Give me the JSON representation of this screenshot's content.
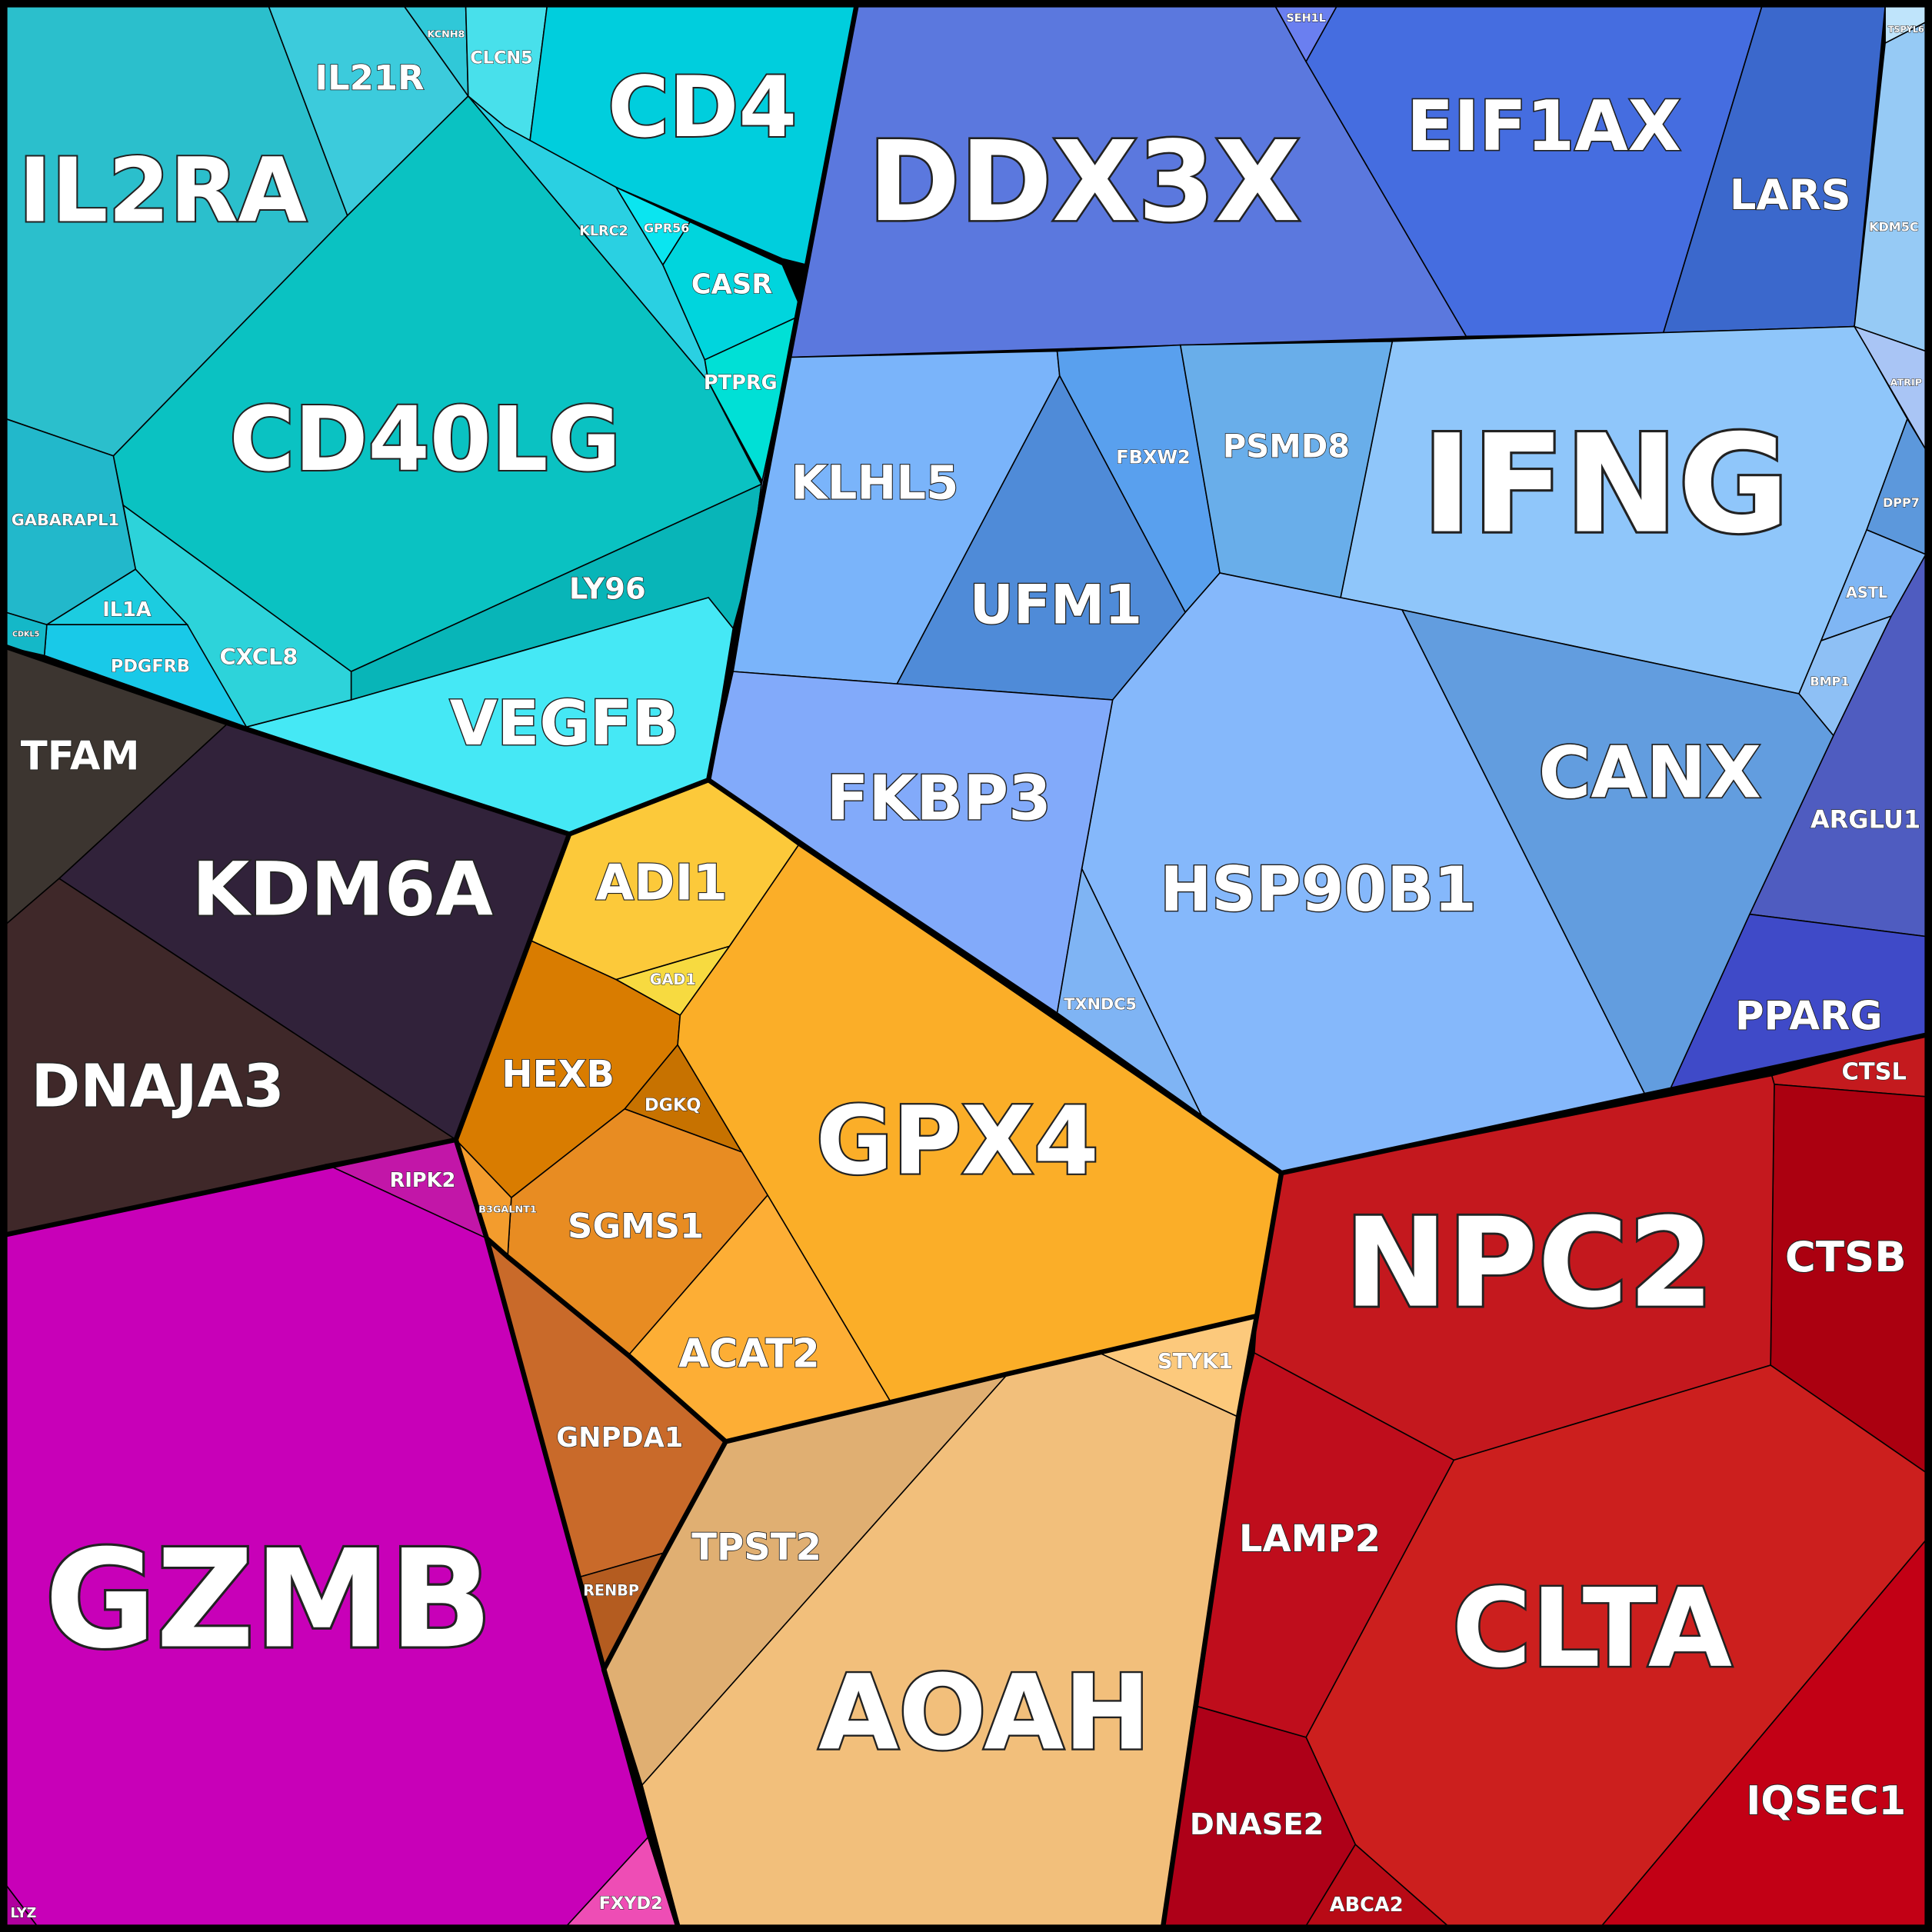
{
  "cells": [
    {
      "label": "IL2RA",
      "color": "#2bbfcc"
    },
    {
      "label": "IL21R",
      "color": "#3ccbdc"
    },
    {
      "label": "KCNH8",
      "color": "#30c8d8"
    },
    {
      "label": "CLCN5",
      "color": "#48e0eb"
    },
    {
      "label": "CD4",
      "color": "#00cedd"
    },
    {
      "label": "KLRC2",
      "color": "#2ad0e2"
    },
    {
      "label": "GPR56",
      "color": "#0ae5f0"
    },
    {
      "label": "CASR",
      "color": "#00d5dd"
    },
    {
      "label": "PTPRG",
      "color": "#00e0d6"
    },
    {
      "label": "CD40LG",
      "color": "#0ac2c2"
    },
    {
      "label": "LY96",
      "color": "#08b5b8"
    },
    {
      "label": "VEGFB",
      "color": "#45e8f5"
    },
    {
      "label": "CXCL8",
      "color": "#2dd3da"
    },
    {
      "label": "GABARAPL1",
      "color": "#22b8cb"
    },
    {
      "label": "IL1A",
      "color": "#1ccce0"
    },
    {
      "label": "PDGFRB",
      "color": "#19c9e8"
    },
    {
      "label": "CDKL5",
      "color": "#14b8c8"
    },
    {
      "label": "TFAM",
      "color": "#3c3530"
    },
    {
      "label": "KDM6A",
      "color": "#31223a"
    },
    {
      "label": "DNAJA3",
      "color": "#3f2829"
    },
    {
      "label": "RIPK2",
      "color": "#c216a8"
    },
    {
      "label": "GZMB",
      "color": "#c800b8"
    },
    {
      "label": "FXYD2",
      "color": "#ee4db5"
    },
    {
      "label": "LYZ",
      "color": "#b0009e"
    },
    {
      "label": "ADI1",
      "color": "#fcc93a"
    },
    {
      "label": "GAD1",
      "color": "#f7da40"
    },
    {
      "label": "HEXB",
      "color": "#d97c00"
    },
    {
      "label": "DGKQ",
      "color": "#c77200"
    },
    {
      "label": "GPX4",
      "color": "#fbae28"
    },
    {
      "label": "SGMS1",
      "color": "#e88c22"
    },
    {
      "label": "B3GALNT1",
      "color": "#f39c2d"
    },
    {
      "label": "ACAT2",
      "color": "#fdae35"
    },
    {
      "label": "GNPDA1",
      "color": "#c96a2a"
    },
    {
      "label": "RENBP",
      "color": "#b45c20"
    },
    {
      "label": "STYK1",
      "color": "#fcc97c"
    },
    {
      "label": "TPST2",
      "color": "#e0af72"
    },
    {
      "label": "AOAH",
      "color": "#f2bf7b"
    },
    {
      "label": "CTSL",
      "color": "#c41a1e"
    },
    {
      "label": "CTSB",
      "color": "#ab0010"
    },
    {
      "label": "NPC2",
      "color": "#c4181e"
    },
    {
      "label": "LAMP2",
      "color": "#bf0d1c"
    },
    {
      "label": "CLTA",
      "color": "#cc1f1e"
    },
    {
      "label": "IQSEC1",
      "color": "#c20015"
    },
    {
      "label": "DNASE2",
      "color": "#ae0018"
    },
    {
      "label": "ABCA2",
      "color": "#b80a16"
    },
    {
      "label": "DDX3X",
      "color": "#5b78de"
    },
    {
      "label": "SEH1L",
      "color": "#6a7ff0"
    },
    {
      "label": "EIF1AX",
      "color": "#456de0"
    },
    {
      "label": "LARS",
      "color": "#3b68cc"
    },
    {
      "label": "TSPYL6",
      "color": "#bfe4fb"
    },
    {
      "label": "KDM5C",
      "color": "#96caf5"
    },
    {
      "label": "ATRIP",
      "color": "#a9c5f5"
    },
    {
      "label": "IFNG",
      "color": "#8fc6fa"
    },
    {
      "label": "DPP7",
      "color": "#5c98dc"
    },
    {
      "label": "ASTL",
      "color": "#7fb6f4"
    },
    {
      "label": "BMP1",
      "color": "#8ec0f5"
    },
    {
      "label": "ARGLU1",
      "color": "#4f5cc0"
    },
    {
      "label": "PPARG",
      "color": "#3f4ac8"
    },
    {
      "label": "KLHL5",
      "color": "#7ab4fa"
    },
    {
      "label": "FBXW2",
      "color": "#59a0ee"
    },
    {
      "label": "UFM1",
      "color": "#4f8bd8"
    },
    {
      "label": "PSMD8",
      "color": "#69aeea"
    },
    {
      "label": "HSP90B1",
      "color": "#85b8fb"
    },
    {
      "label": "CANX",
      "color": "#629ddf"
    },
    {
      "label": "FKBP3",
      "color": "#82aafa"
    },
    {
      "label": "TXNDC5",
      "color": "#7fb4f4"
    }
  ]
}
